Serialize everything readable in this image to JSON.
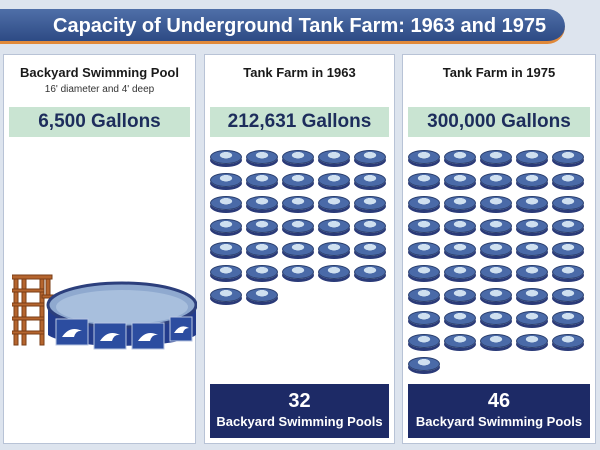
{
  "title": "Capacity of Underground Tank Farm: 1963 and 1975",
  "panels": [
    {
      "title": "Backyard Swimming Pool",
      "subtitle": "16' diameter and 4' deep",
      "gallons": "6,500 Gallons"
    },
    {
      "title": "Tank Farm in 1963",
      "gallons": "212,631 Gallons",
      "pool_count": 32,
      "count_text": "32",
      "count_label": "Backyard Swimming Pools"
    },
    {
      "title": "Tank Farm in 1975",
      "gallons": "300,000 Gallons",
      "pool_count": 46,
      "count_text": "46",
      "count_label": "Backyard Swimming Pools"
    }
  ],
  "colors": {
    "title_bar": "#3b5a96",
    "accent_line": "#e0893a",
    "gallons_bg": "#c9e4d2",
    "count_bg": "#1d2a66"
  },
  "icons": [
    "swimming-pool-icon",
    "ladder-icon",
    "dolphin-icon"
  ]
}
